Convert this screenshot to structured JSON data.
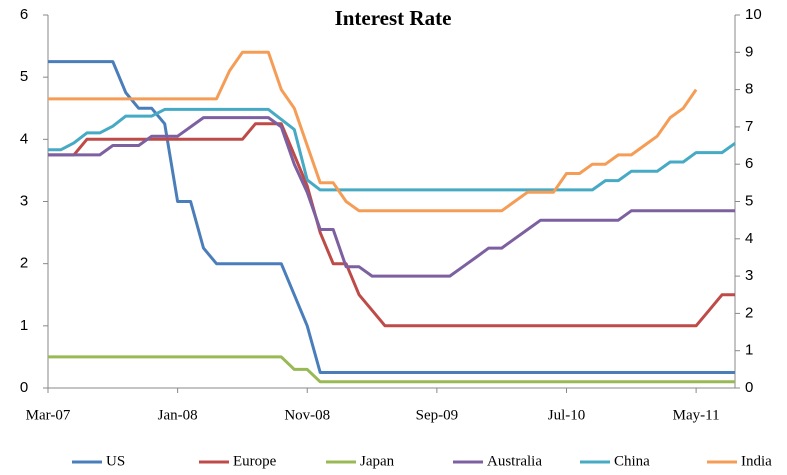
{
  "chart_data": {
    "type": "line",
    "title": "Interest Rate",
    "categories": [
      "Mar-07",
      null,
      null,
      null,
      null,
      null,
      null,
      null,
      null,
      null,
      "Jan-08",
      null,
      null,
      null,
      null,
      null,
      null,
      null,
      null,
      null,
      "Nov-08",
      null,
      null,
      null,
      null,
      null,
      null,
      null,
      null,
      null,
      "Sep-09",
      null,
      null,
      null,
      null,
      null,
      null,
      null,
      null,
      null,
      "Jul-10",
      null,
      null,
      null,
      null,
      null,
      null,
      null,
      null,
      null,
      "May-11",
      null,
      null,
      null
    ],
    "ylim": [
      0,
      6
    ],
    "yticks": [
      0,
      1,
      2,
      3,
      4,
      5,
      6
    ],
    "y2lim": [
      0,
      10
    ],
    "y2ticks": [
      0,
      1,
      2,
      3,
      4,
      5,
      6,
      7,
      8,
      9,
      10
    ],
    "grid": false,
    "legend": "bottom",
    "series": [
      {
        "name": "US",
        "color": "#4a7ebb",
        "values": [
          5.25,
          5.25,
          5.25,
          5.25,
          5.25,
          5.25,
          4.75,
          4.5,
          4.5,
          4.25,
          3,
          3,
          2.25,
          2,
          2,
          2,
          2,
          2,
          2,
          1.5,
          1,
          0.25,
          0.25,
          0.25,
          0.25,
          0.25,
          0.25,
          0.25,
          0.25,
          0.25,
          0.25,
          0.25,
          0.25,
          0.25,
          0.25,
          0.25,
          0.25,
          0.25,
          0.25,
          0.25,
          0.25,
          0.25,
          0.25,
          0.25,
          0.25,
          0.25,
          0.25,
          0.25,
          0.25,
          0.25,
          0.25,
          0.25,
          0.25,
          0.25
        ]
      },
      {
        "name": "Europe",
        "color": "#be4b48",
        "values": [
          3.75,
          3.75,
          3.75,
          4,
          4,
          4,
          4,
          4,
          4,
          4,
          4,
          4,
          4,
          4,
          4,
          4,
          4.25,
          4.25,
          4.25,
          3.75,
          3.25,
          2.5,
          2,
          2,
          1.5,
          1.25,
          1,
          1,
          1,
          1,
          1,
          1,
          1,
          1,
          1,
          1,
          1,
          1,
          1,
          1,
          1,
          1,
          1,
          1,
          1,
          1,
          1,
          1,
          1,
          1,
          1,
          1.25,
          1.5,
          1.5
        ]
      },
      {
        "name": "Japan",
        "color": "#98b954",
        "values": [
          0.5,
          0.5,
          0.5,
          0.5,
          0.5,
          0.5,
          0.5,
          0.5,
          0.5,
          0.5,
          0.5,
          0.5,
          0.5,
          0.5,
          0.5,
          0.5,
          0.5,
          0.5,
          0.5,
          0.3,
          0.3,
          0.1,
          0.1,
          0.1,
          0.1,
          0.1,
          0.1,
          0.1,
          0.1,
          0.1,
          0.1,
          0.1,
          0.1,
          0.1,
          0.1,
          0.1,
          0.1,
          0.1,
          0.1,
          0.1,
          0.1,
          0.1,
          0.1,
          0.1,
          0.1,
          0.1,
          0.1,
          0.1,
          0.1,
          0.1,
          0.1,
          0.1,
          0.1,
          0.1
        ]
      },
      {
        "name": "Australia",
        "color": "#7d60a0",
        "axis": "y2",
        "values": [
          6.25,
          6.25,
          6.25,
          6.25,
          6.25,
          6.5,
          6.5,
          6.5,
          6.75,
          6.75,
          6.75,
          7,
          7.25,
          7.25,
          7.25,
          7.25,
          7.25,
          7.25,
          7,
          6,
          5.25,
          4.25,
          4.25,
          3.25,
          3.25,
          3,
          3,
          3,
          3,
          3,
          3,
          3,
          3.25,
          3.5,
          3.75,
          3.75,
          4,
          4.25,
          4.5,
          4.5,
          4.5,
          4.5,
          4.5,
          4.5,
          4.5,
          4.75,
          4.75,
          4.75,
          4.75,
          4.75,
          4.75,
          4.75,
          4.75,
          4.75
        ]
      },
      {
        "name": "China",
        "color": "#46aac5",
        "axis": "y2",
        "values": [
          6.39,
          6.39,
          6.57,
          6.84,
          6.84,
          7.02,
          7.29,
          7.29,
          7.29,
          7.47,
          7.47,
          7.47,
          7.47,
          7.47,
          7.47,
          7.47,
          7.47,
          7.47,
          7.2,
          6.93,
          5.58,
          5.31,
          5.31,
          5.31,
          5.31,
          5.31,
          5.31,
          5.31,
          5.31,
          5.31,
          5.31,
          5.31,
          5.31,
          5.31,
          5.31,
          5.31,
          5.31,
          5.31,
          5.31,
          5.31,
          5.31,
          5.31,
          5.31,
          5.56,
          5.56,
          5.81,
          5.81,
          5.81,
          6.06,
          6.06,
          6.31,
          6.31,
          6.31,
          6.56
        ]
      },
      {
        "name": "India",
        "color": "#f59d56",
        "axis": "y2",
        "values": [
          7.75,
          7.75,
          7.75,
          7.75,
          7.75,
          7.75,
          7.75,
          7.75,
          7.75,
          7.75,
          7.75,
          7.75,
          7.75,
          7.75,
          8.5,
          9,
          9,
          9,
          8,
          7.5,
          6.5,
          5.5,
          5.5,
          5,
          4.75,
          4.75,
          4.75,
          4.75,
          4.75,
          4.75,
          4.75,
          4.75,
          4.75,
          4.75,
          4.75,
          4.75,
          5,
          5.25,
          5.25,
          5.25,
          5.75,
          5.75,
          6,
          6,
          6.25,
          6.25,
          6.5,
          6.75,
          7.25,
          7.5,
          8,
          null,
          null,
          null
        ]
      }
    ]
  }
}
